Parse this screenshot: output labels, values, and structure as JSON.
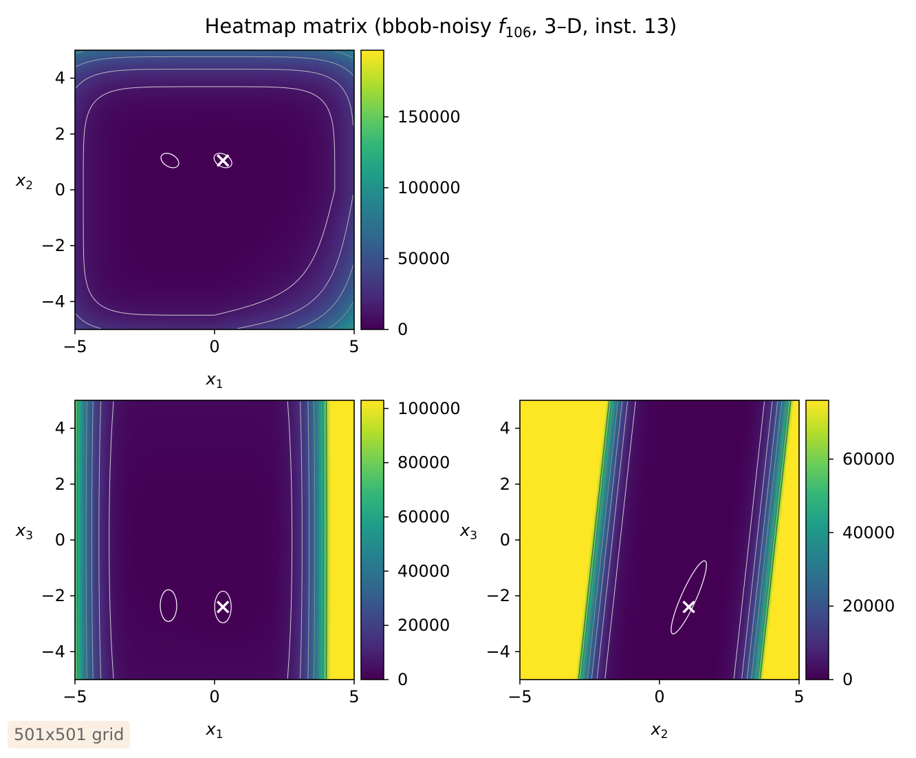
{
  "figure": {
    "title_main": "Heatmap matrix (bbob-noisy ",
    "title_func": "f",
    "title_func_sub": "106",
    "title_rest": ", 3–D, inst. 13)",
    "badge": "501x501 grid"
  },
  "colors": {
    "viridis": [
      "#440154",
      "#482878",
      "#3e4989",
      "#31688e",
      "#26828e",
      "#1f9e89",
      "#35b779",
      "#6ece58",
      "#b5de2b",
      "#fde725"
    ],
    "marker": "#ffffff",
    "frame": "#000000"
  },
  "chart_data": [
    {
      "type": "heatmap",
      "xlabel": "x",
      "xlabel_sub": "1",
      "ylabel": "x",
      "ylabel_sub": "2",
      "xlim": [
        -5,
        5
      ],
      "ylim": [
        -5,
        5
      ],
      "xticks": [
        -5,
        0,
        5
      ],
      "xtick_labels": [
        "−5",
        "0",
        "5"
      ],
      "yticks": [
        -4,
        -2,
        0,
        2,
        4
      ],
      "ytick_labels": [
        "−4",
        "−2",
        "0",
        "2",
        "4"
      ],
      "colorbar": {
        "vmin": 0,
        "vmax": 197000,
        "ticks": [
          0,
          50000,
          100000,
          150000
        ],
        "tick_labels": [
          "0",
          "50000",
          "100000",
          "150000"
        ]
      },
      "optimum": {
        "x": 0.3,
        "y": 1.05
      },
      "local_minima": [
        {
          "x": -1.6,
          "y": 1.05
        }
      ],
      "field_variables": [
        "x1",
        "x2"
      ],
      "fixed_value": -2.4
    },
    {
      "type": "heatmap",
      "xlabel": "x",
      "xlabel_sub": "1",
      "ylabel": "x",
      "ylabel_sub": "3",
      "xlim": [
        -5,
        5
      ],
      "ylim": [
        -5,
        5
      ],
      "xticks": [
        -5,
        0,
        5
      ],
      "xtick_labels": [
        "−5",
        "0",
        "5"
      ],
      "yticks": [
        -4,
        -2,
        0,
        2,
        4
      ],
      "ytick_labels": [
        "−4",
        "−2",
        "0",
        "2",
        "4"
      ],
      "colorbar": {
        "vmin": 0,
        "vmax": 103000,
        "ticks": [
          0,
          20000,
          40000,
          60000,
          80000,
          100000
        ],
        "tick_labels": [
          "0",
          "20000",
          "40000",
          "60000",
          "80000",
          "100000"
        ]
      },
      "optimum": {
        "x": 0.3,
        "y": -2.4
      },
      "local_minima": [
        {
          "x": -1.65,
          "y": -2.35
        }
      ],
      "field_variables": [
        "x1",
        "x3"
      ],
      "fixed_value": 1.05
    },
    {
      "type": "heatmap",
      "xlabel": "x",
      "xlabel_sub": "2",
      "ylabel": "x",
      "ylabel_sub": "3",
      "xlim": [
        -5,
        5
      ],
      "ylim": [
        -5,
        5
      ],
      "xticks": [
        -5,
        0,
        5
      ],
      "xtick_labels": [
        "−5",
        "0",
        "5"
      ],
      "yticks": [
        -4,
        -2,
        0,
        2,
        4
      ],
      "ytick_labels": [
        "−4",
        "−2",
        "0",
        "2",
        "4"
      ],
      "colorbar": {
        "vmin": 0,
        "vmax": 76000,
        "ticks": [
          0,
          20000,
          40000,
          60000
        ],
        "tick_labels": [
          "0",
          "20000",
          "40000",
          "60000"
        ]
      },
      "optimum": {
        "x": 1.05,
        "y": -2.4
      },
      "local_minima": [],
      "field_variables": [
        "x2",
        "x3"
      ],
      "fixed_value": 0.3
    }
  ]
}
